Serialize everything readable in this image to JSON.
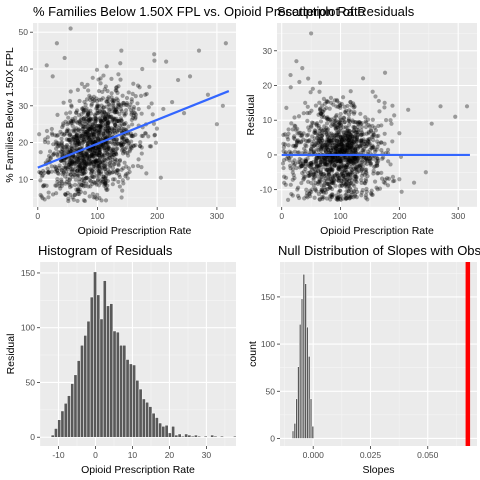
{
  "colors": {
    "panel": "#ebebeb",
    "grid_major": "#ffffff",
    "grid_minor": "#f5f5f5",
    "tick_text": "#4d4d4d",
    "point": "#000000",
    "fit_line": "#3366ff",
    "bar": "#595959",
    "observed": "#ff0000"
  },
  "chart_data": [
    {
      "type": "scatter",
      "title": "% Families Below 1.50X FPL vs. Opioid Prescription Rate",
      "xlabel": "Opioid Prescription Rate",
      "ylabel": "% Families Below 1.50X FPL",
      "xlim": [
        -8,
        332
      ],
      "ylim": [
        2.5,
        52.5
      ],
      "xticks": [
        0,
        100,
        200,
        300
      ],
      "yticks": [
        10,
        20,
        30,
        40,
        50
      ],
      "grid": true,
      "point_alpha": 0.35,
      "points_sampled": 1300,
      "distribution": {
        "x_center": 90,
        "x_spread": 40,
        "y_intercept": 13.0,
        "y_slope": 0.065,
        "resid_sd": 6.5
      },
      "fit_line": {
        "x": [
          0,
          320
        ],
        "y": [
          13.2,
          34.0
        ]
      },
      "outlier_points": [
        {
          "x": 55,
          "y": 51
        },
        {
          "x": 32,
          "y": 47
        },
        {
          "x": 270,
          "y": 45
        },
        {
          "x": 315,
          "y": 47
        },
        {
          "x": 215,
          "y": 42
        },
        {
          "x": 235,
          "y": 37
        },
        {
          "x": 245,
          "y": 28
        },
        {
          "x": 300,
          "y": 25
        },
        {
          "x": 310,
          "y": 30
        },
        {
          "x": 255,
          "y": 38
        },
        {
          "x": 195,
          "y": 44
        },
        {
          "x": 175,
          "y": 40
        },
        {
          "x": 15,
          "y": 41
        },
        {
          "x": 25,
          "y": 38
        },
        {
          "x": 45,
          "y": 43
        },
        {
          "x": 160,
          "y": 36
        },
        {
          "x": 225,
          "y": 31
        },
        {
          "x": 285,
          "y": 33
        },
        {
          "x": 180,
          "y": 33
        },
        {
          "x": 140,
          "y": 45
        }
      ]
    },
    {
      "type": "scatter",
      "title": "Scatterplot of Residuals",
      "xlabel": "Opioid Prescription Rate",
      "ylabel": "Residual",
      "xlim": [
        -8,
        332
      ],
      "ylim": [
        -15,
        38
      ],
      "xticks": [
        0,
        100,
        200,
        300
      ],
      "yticks": [
        -10,
        0,
        10,
        20,
        30
      ],
      "grid": true,
      "point_alpha": 0.35,
      "points_sampled": 1300,
      "distribution": {
        "x_center": 90,
        "x_spread": 40,
        "resid_sd": 6.5
      },
      "fit_line": {
        "x": [
          0,
          320
        ],
        "y": [
          0,
          0
        ]
      },
      "outlier_points": [
        {
          "x": 50,
          "y": 35
        },
        {
          "x": 25,
          "y": 27
        },
        {
          "x": 35,
          "y": 25
        },
        {
          "x": 15,
          "y": 23
        },
        {
          "x": 30,
          "y": 21
        },
        {
          "x": 45,
          "y": 22
        },
        {
          "x": 270,
          "y": 14
        },
        {
          "x": 315,
          "y": 14
        },
        {
          "x": 295,
          "y": 11
        },
        {
          "x": 255,
          "y": 9
        },
        {
          "x": 245,
          "y": -5
        },
        {
          "x": 215,
          "y": 13
        },
        {
          "x": 200,
          "y": -7
        },
        {
          "x": 225,
          "y": -8
        },
        {
          "x": 185,
          "y": 10
        },
        {
          "x": 175,
          "y": 15
        }
      ]
    },
    {
      "type": "bar",
      "title": "Histogram of Residuals",
      "xlabel": "Opioid Prescription Rate",
      "ylabel": "Residual",
      "xlim": [
        -15,
        38
      ],
      "ylim": [
        -8,
        160
      ],
      "xticks": [
        -10,
        0,
        10,
        20,
        30
      ],
      "yticks": [
        0,
        50,
        100,
        150
      ],
      "grid": true,
      "bin_width": 0.88,
      "bin_start": -12.0,
      "counts": [
        2,
        8,
        16,
        24,
        31,
        38,
        49,
        57,
        70,
        84,
        93,
        106,
        128,
        151,
        130,
        108,
        143,
        120,
        122,
        97,
        96,
        84,
        84,
        71,
        67,
        66,
        52,
        44,
        35,
        32,
        28,
        22,
        18,
        13,
        10,
        11,
        4,
        10,
        2,
        3,
        1,
        3,
        2,
        1,
        2,
        1,
        0,
        1,
        0,
        2,
        1,
        0,
        1,
        0,
        0,
        0,
        1,
        0,
        0,
        0,
        0,
        0,
        0,
        0,
        0,
        0,
        0,
        0,
        0,
        0,
        0,
        0,
        0,
        0,
        0,
        0,
        0,
        0,
        0,
        0,
        0,
        0,
        0,
        0,
        0,
        0,
        0,
        0,
        0,
        0,
        1
      ]
    },
    {
      "type": "bar",
      "title": "Null Distribution of Slopes with Observed Slope",
      "xlabel": "Slopes",
      "ylabel": "count",
      "xlim": [
        -0.0145,
        0.0715
      ],
      "ylim": [
        -8,
        187
      ],
      "xticks": [
        0.0,
        0.025,
        0.05
      ],
      "xtick_labels": [
        "0.000",
        "0.025",
        "0.050"
      ],
      "yticks": [
        0,
        50,
        100,
        150
      ],
      "grid": true,
      "bin_width": 0.000785,
      "bin_start": -0.0092,
      "counts": [
        8,
        16,
        42,
        76,
        121,
        148,
        174,
        164,
        118,
        87,
        42,
        13
      ],
      "observed_slope": 0.0675
    }
  ]
}
